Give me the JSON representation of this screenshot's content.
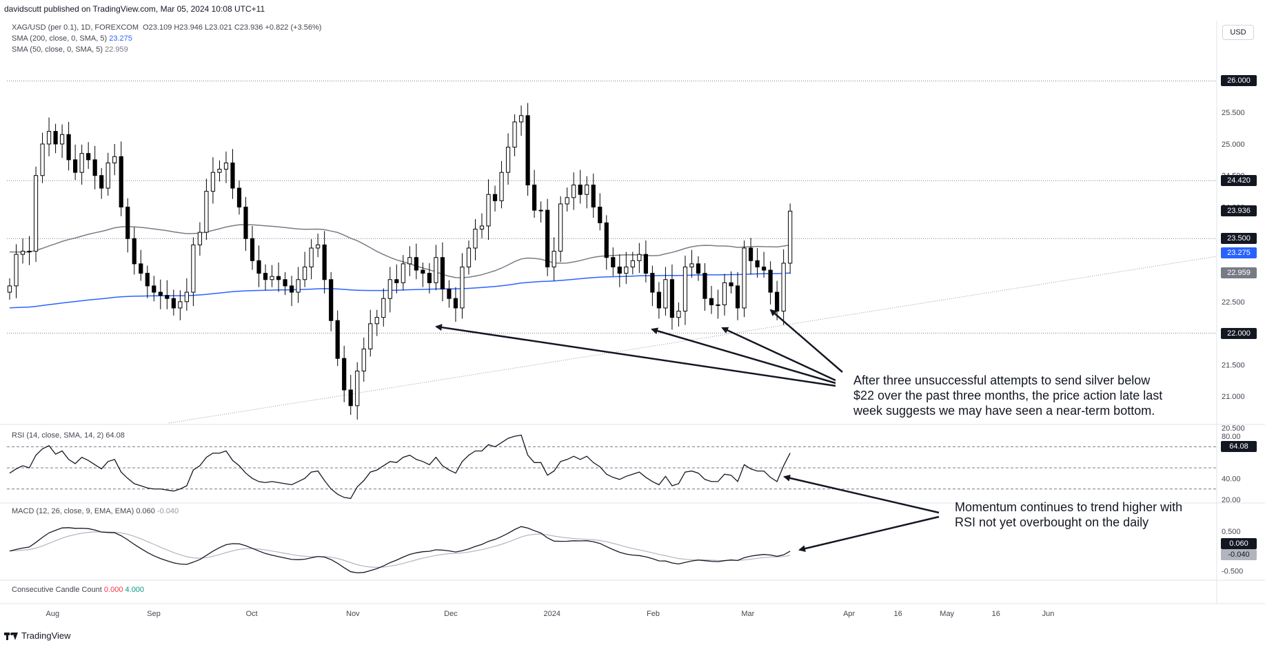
{
  "header": {
    "published": "davidscutt published on TradingView.com, Mar 05, 2024 10:08 UTC+11",
    "symbol_line": "XAG/USD (per 0.1), 1D, FOREXCOM",
    "ohlc": "O23.109 H23.946 L23.021 C23.936 +0.822 (+3.56%)",
    "sma200_label": "SMA (200, close, 0, SMA, 5)",
    "sma200_value": "23.275",
    "sma50_label": "SMA (50, close, 0, SMA, 5)",
    "sma50_value": "22.959",
    "currency_button": "USD"
  },
  "colors": {
    "sma200": "#2962ff",
    "sma50": "#787b86",
    "candle": "#000000",
    "badge_dark": "#131722",
    "badge_blue": "#2962ff",
    "badge_grey": "#787b86"
  },
  "price_badges": [
    {
      "value": "26.000",
      "price": 26.0,
      "style": "dark"
    },
    {
      "value": "24.420",
      "price": 24.42,
      "style": "dark"
    },
    {
      "value": "23.936",
      "price": 23.936,
      "style": "dark"
    },
    {
      "value": "23.500",
      "price": 23.5,
      "style": "dark"
    },
    {
      "value": "23.275",
      "price": 23.275,
      "style": "blue"
    },
    {
      "value": "22.959",
      "price": 22.959,
      "style": "grey"
    },
    {
      "value": "22.000",
      "price": 22.0,
      "style": "dark"
    }
  ],
  "chart_data": {
    "type": "candlestick",
    "title": "XAG/USD (per 0.1), 1D, FOREXCOM",
    "price_axis_ticks": [
      "25.500",
      "25.000",
      "24.500",
      "24.000",
      "23.000",
      "22.500",
      "21.500",
      "21.000",
      "20.500"
    ],
    "price_axis_values": [
      25.5,
      25.0,
      24.5,
      24.0,
      23.0,
      22.5,
      21.5,
      21.0,
      20.5
    ],
    "ylim": [
      20.4,
      26.3
    ],
    "time_axis_labels": [
      "Aug",
      "Sep",
      "Oct",
      "Nov",
      "Dec",
      "2024",
      "Feb",
      "Mar",
      "Apr",
      "16",
      "May",
      "16",
      "Jun"
    ],
    "time_axis_days": [
      14,
      45,
      75,
      106,
      136,
      167,
      198,
      227,
      258,
      273,
      288,
      303,
      319
    ],
    "date_origin": "2023-07-18",
    "horizontal_levels": [
      26.0,
      24.42,
      23.5,
      22.0
    ],
    "trendline": {
      "from": [
        2023.81,
        20.4
      ],
      "to": [
        2024.31,
        22.8
      ]
    },
    "closes": [
      22.75,
      23.25,
      23.3,
      23.3,
      24.5,
      25.0,
      25.2,
      25.0,
      25.15,
      24.75,
      24.55,
      24.85,
      24.75,
      24.5,
      24.3,
      24.7,
      24.8,
      24.0,
      23.5,
      23.1,
      22.95,
      22.75,
      22.65,
      22.6,
      22.55,
      22.4,
      22.5,
      22.65,
      23.4,
      23.6,
      24.25,
      24.55,
      24.6,
      24.7,
      24.3,
      24.0,
      23.5,
      23.15,
      22.95,
      22.85,
      22.9,
      22.85,
      22.75,
      22.65,
      22.85,
      23.05,
      23.35,
      23.4,
      22.85,
      22.2,
      21.6,
      21.1,
      20.85,
      21.4,
      21.75,
      22.15,
      22.25,
      22.55,
      22.85,
      22.8,
      23.1,
      23.2,
      23.0,
      22.95,
      22.8,
      23.2,
      22.7,
      22.55,
      22.4,
      23.05,
      23.35,
      23.65,
      23.7,
      24.2,
      24.1,
      24.55,
      24.95,
      25.35,
      25.45,
      24.35,
      23.95,
      23.95,
      23.05,
      23.3,
      24.05,
      24.15,
      24.35,
      24.2,
      24.35,
      24.0,
      23.75,
      23.2,
      23.05,
      22.95,
      23.05,
      23.15,
      23.25,
      22.95,
      22.65,
      22.4,
      22.85,
      22.25,
      22.35,
      23.05,
      23.1,
      22.95,
      22.55,
      22.45,
      22.45,
      22.8,
      22.75,
      22.4,
      23.35,
      23.15,
      23.05,
      23.0,
      22.65,
      22.35,
      23.11,
      23.936
    ],
    "rsi": {
      "label": "RSI (14, close, SMA, 14, 2)",
      "value": "64.08",
      "ticks": [
        "80.00",
        "40.00",
        "20.00"
      ],
      "tick_values": [
        80,
        40,
        20
      ],
      "band_levels": [
        70,
        50,
        30
      ],
      "ylim": [
        18,
        82
      ],
      "values": [
        45,
        49,
        52,
        50,
        62,
        68,
        71,
        63,
        66,
        58,
        54,
        60,
        57,
        53,
        49,
        56,
        58,
        46,
        40,
        35,
        33,
        31,
        30,
        30,
        29,
        28,
        30,
        33,
        48,
        52,
        60,
        64,
        64,
        66,
        57,
        52,
        45,
        40,
        37,
        36,
        37,
        36,
        35,
        34,
        37,
        40,
        46,
        47,
        38,
        30,
        25,
        22,
        21,
        32,
        38,
        46,
        48,
        52,
        56,
        55,
        60,
        62,
        58,
        56,
        53,
        60,
        52,
        48,
        45,
        56,
        62,
        66,
        66,
        72,
        70,
        74,
        78,
        80,
        81,
        62,
        55,
        55,
        43,
        47,
        56,
        58,
        61,
        58,
        61,
        55,
        51,
        44,
        41,
        39,
        42,
        44,
        46,
        41,
        37,
        34,
        42,
        33,
        35,
        46,
        47,
        45,
        39,
        37,
        37,
        44,
        43,
        37,
        53,
        49,
        47,
        47,
        41,
        37,
        52,
        64.08
      ]
    },
    "macd": {
      "label": "MACD (12, 26, close, 9, EMA, EMA)",
      "value": "0.060",
      "signal_value": "-0.040",
      "ticks": [
        "0.500",
        "-0.500"
      ],
      "tick_values": [
        0.5,
        -0.5
      ],
      "ylim": [
        -0.7,
        0.95
      ]
    },
    "candle_count": {
      "label": "Consecutive Candle Count",
      "value1": "0.000",
      "value2": "4.000"
    }
  },
  "annotations": {
    "note1": [
      "After three unsuccessful attempts to send silver below",
      "$22 over the past three months, the price action late last",
      "week suggests we may have seen a near-term bottom."
    ],
    "note2": [
      "Momentum continues to trend higher with",
      "RSI not yet overbought on the daily"
    ]
  },
  "footer": {
    "brand": "TradingView"
  }
}
